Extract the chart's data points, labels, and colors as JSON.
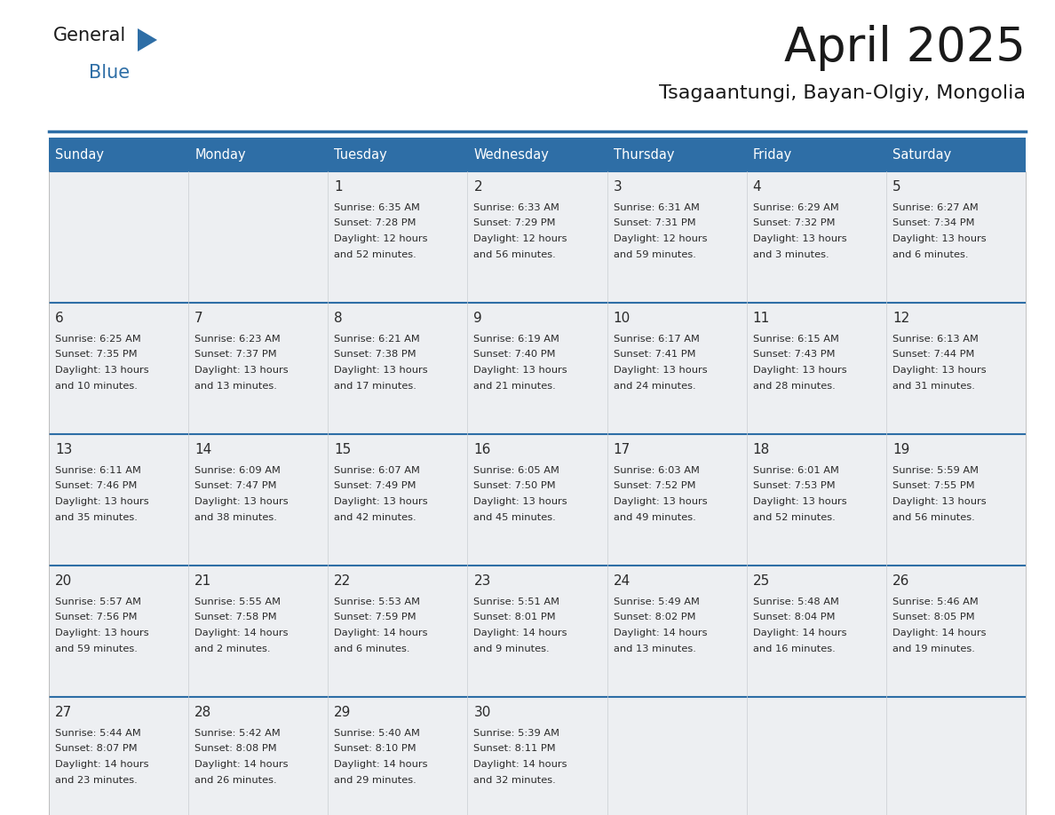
{
  "title": "April 2025",
  "subtitle": "Tsagaantungi, Bayan-Olgiy, Mongolia",
  "header_bg": "#2E6EA6",
  "header_text_color": "#FFFFFF",
  "row_separator_color": "#2E6EA6",
  "col_separator_color": "#C8CDD2",
  "cell_bg": "#EDEFF2",
  "cell_bg_alt": "#FFFFFF",
  "day_names": [
    "Sunday",
    "Monday",
    "Tuesday",
    "Wednesday",
    "Thursday",
    "Friday",
    "Saturday"
  ],
  "days": [
    {
      "date": 1,
      "col": 2,
      "row": 0,
      "sunrise": "6:35 AM",
      "sunset": "7:28 PM",
      "daylight": "12 hours\nand 52 minutes."
    },
    {
      "date": 2,
      "col": 3,
      "row": 0,
      "sunrise": "6:33 AM",
      "sunset": "7:29 PM",
      "daylight": "12 hours\nand 56 minutes."
    },
    {
      "date": 3,
      "col": 4,
      "row": 0,
      "sunrise": "6:31 AM",
      "sunset": "7:31 PM",
      "daylight": "12 hours\nand 59 minutes."
    },
    {
      "date": 4,
      "col": 5,
      "row": 0,
      "sunrise": "6:29 AM",
      "sunset": "7:32 PM",
      "daylight": "13 hours\nand 3 minutes."
    },
    {
      "date": 5,
      "col": 6,
      "row": 0,
      "sunrise": "6:27 AM",
      "sunset": "7:34 PM",
      "daylight": "13 hours\nand 6 minutes."
    },
    {
      "date": 6,
      "col": 0,
      "row": 1,
      "sunrise": "6:25 AM",
      "sunset": "7:35 PM",
      "daylight": "13 hours\nand 10 minutes."
    },
    {
      "date": 7,
      "col": 1,
      "row": 1,
      "sunrise": "6:23 AM",
      "sunset": "7:37 PM",
      "daylight": "13 hours\nand 13 minutes."
    },
    {
      "date": 8,
      "col": 2,
      "row": 1,
      "sunrise": "6:21 AM",
      "sunset": "7:38 PM",
      "daylight": "13 hours\nand 17 minutes."
    },
    {
      "date": 9,
      "col": 3,
      "row": 1,
      "sunrise": "6:19 AM",
      "sunset": "7:40 PM",
      "daylight": "13 hours\nand 21 minutes."
    },
    {
      "date": 10,
      "col": 4,
      "row": 1,
      "sunrise": "6:17 AM",
      "sunset": "7:41 PM",
      "daylight": "13 hours\nand 24 minutes."
    },
    {
      "date": 11,
      "col": 5,
      "row": 1,
      "sunrise": "6:15 AM",
      "sunset": "7:43 PM",
      "daylight": "13 hours\nand 28 minutes."
    },
    {
      "date": 12,
      "col": 6,
      "row": 1,
      "sunrise": "6:13 AM",
      "sunset": "7:44 PM",
      "daylight": "13 hours\nand 31 minutes."
    },
    {
      "date": 13,
      "col": 0,
      "row": 2,
      "sunrise": "6:11 AM",
      "sunset": "7:46 PM",
      "daylight": "13 hours\nand 35 minutes."
    },
    {
      "date": 14,
      "col": 1,
      "row": 2,
      "sunrise": "6:09 AM",
      "sunset": "7:47 PM",
      "daylight": "13 hours\nand 38 minutes."
    },
    {
      "date": 15,
      "col": 2,
      "row": 2,
      "sunrise": "6:07 AM",
      "sunset": "7:49 PM",
      "daylight": "13 hours\nand 42 minutes."
    },
    {
      "date": 16,
      "col": 3,
      "row": 2,
      "sunrise": "6:05 AM",
      "sunset": "7:50 PM",
      "daylight": "13 hours\nand 45 minutes."
    },
    {
      "date": 17,
      "col": 4,
      "row": 2,
      "sunrise": "6:03 AM",
      "sunset": "7:52 PM",
      "daylight": "13 hours\nand 49 minutes."
    },
    {
      "date": 18,
      "col": 5,
      "row": 2,
      "sunrise": "6:01 AM",
      "sunset": "7:53 PM",
      "daylight": "13 hours\nand 52 minutes."
    },
    {
      "date": 19,
      "col": 6,
      "row": 2,
      "sunrise": "5:59 AM",
      "sunset": "7:55 PM",
      "daylight": "13 hours\nand 56 minutes."
    },
    {
      "date": 20,
      "col": 0,
      "row": 3,
      "sunrise": "5:57 AM",
      "sunset": "7:56 PM",
      "daylight": "13 hours\nand 59 minutes."
    },
    {
      "date": 21,
      "col": 1,
      "row": 3,
      "sunrise": "5:55 AM",
      "sunset": "7:58 PM",
      "daylight": "14 hours\nand 2 minutes."
    },
    {
      "date": 22,
      "col": 2,
      "row": 3,
      "sunrise": "5:53 AM",
      "sunset": "7:59 PM",
      "daylight": "14 hours\nand 6 minutes."
    },
    {
      "date": 23,
      "col": 3,
      "row": 3,
      "sunrise": "5:51 AM",
      "sunset": "8:01 PM",
      "daylight": "14 hours\nand 9 minutes."
    },
    {
      "date": 24,
      "col": 4,
      "row": 3,
      "sunrise": "5:49 AM",
      "sunset": "8:02 PM",
      "daylight": "14 hours\nand 13 minutes."
    },
    {
      "date": 25,
      "col": 5,
      "row": 3,
      "sunrise": "5:48 AM",
      "sunset": "8:04 PM",
      "daylight": "14 hours\nand 16 minutes."
    },
    {
      "date": 26,
      "col": 6,
      "row": 3,
      "sunrise": "5:46 AM",
      "sunset": "8:05 PM",
      "daylight": "14 hours\nand 19 minutes."
    },
    {
      "date": 27,
      "col": 0,
      "row": 4,
      "sunrise": "5:44 AM",
      "sunset": "8:07 PM",
      "daylight": "14 hours\nand 23 minutes."
    },
    {
      "date": 28,
      "col": 1,
      "row": 4,
      "sunrise": "5:42 AM",
      "sunset": "8:08 PM",
      "daylight": "14 hours\nand 26 minutes."
    },
    {
      "date": 29,
      "col": 2,
      "row": 4,
      "sunrise": "5:40 AM",
      "sunset": "8:10 PM",
      "daylight": "14 hours\nand 29 minutes."
    },
    {
      "date": 30,
      "col": 3,
      "row": 4,
      "sunrise": "5:39 AM",
      "sunset": "8:11 PM",
      "daylight": "14 hours\nand 32 minutes."
    }
  ],
  "num_rows": 5,
  "num_cols": 7,
  "logo_text_general": "General",
  "logo_text_blue": "Blue",
  "logo_color_general": "#1a1a1a",
  "logo_color_blue": "#2E6EA6",
  "logo_triangle_color": "#2E6EA6",
  "fig_width": 11.88,
  "fig_height": 9.18,
  "dpi": 100
}
